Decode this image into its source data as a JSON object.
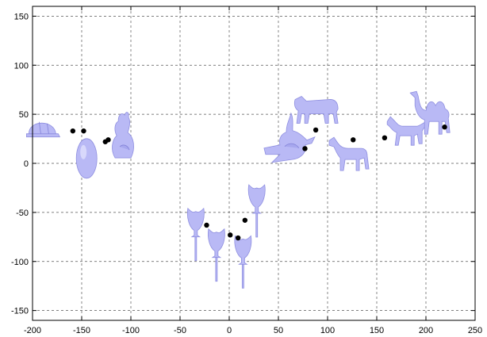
{
  "chart_data": {
    "type": "scatter",
    "title": "",
    "xlabel": "",
    "ylabel": "",
    "xlim": [
      -200,
      250
    ],
    "ylim": [
      -160,
      160
    ],
    "x_ticks": [
      -200,
      -150,
      -100,
      -50,
      0,
      50,
      100,
      150,
      200,
      250
    ],
    "y_ticks": [
      -150,
      -100,
      -50,
      0,
      50,
      100,
      150
    ],
    "grid": true,
    "marker_color": "#000000",
    "thumbnail_color": "#b9b9f5",
    "points": [
      {
        "x": -159,
        "y": 33
      },
      {
        "x": -148,
        "y": 33
      },
      {
        "x": -126,
        "y": 22
      },
      {
        "x": -123,
        "y": 24
      },
      {
        "x": -23,
        "y": -63
      },
      {
        "x": 1,
        "y": -73
      },
      {
        "x": 9,
        "y": -76
      },
      {
        "x": 16,
        "y": -58
      },
      {
        "x": 77,
        "y": 15
      },
      {
        "x": 88,
        "y": 34
      },
      {
        "x": 126,
        "y": 24
      },
      {
        "x": 158,
        "y": 26
      },
      {
        "x": 219,
        "y": 37
      }
    ],
    "thumbnails": [
      {
        "name": "cap-icon",
        "x": -190,
        "y": 35
      },
      {
        "name": "egg-icon",
        "x": -145,
        "y": 5
      },
      {
        "name": "rabbit-icon",
        "x": -108,
        "y": 25
      },
      {
        "name": "goblet-icon",
        "x": -34,
        "y": -62
      },
      {
        "name": "goblet-icon",
        "x": -13,
        "y": -83
      },
      {
        "name": "goblet-icon",
        "x": 14,
        "y": -90
      },
      {
        "name": "goblet-icon",
        "x": 28,
        "y": -38
      },
      {
        "name": "armadillo-icon",
        "x": 58,
        "y": 22
      },
      {
        "name": "cow-icon",
        "x": 88,
        "y": 57
      },
      {
        "name": "horse-icon",
        "x": 121,
        "y": 12
      },
      {
        "name": "dog-icon",
        "x": 180,
        "y": 33
      },
      {
        "name": "camel-icon",
        "x": 205,
        "y": 54
      }
    ]
  }
}
